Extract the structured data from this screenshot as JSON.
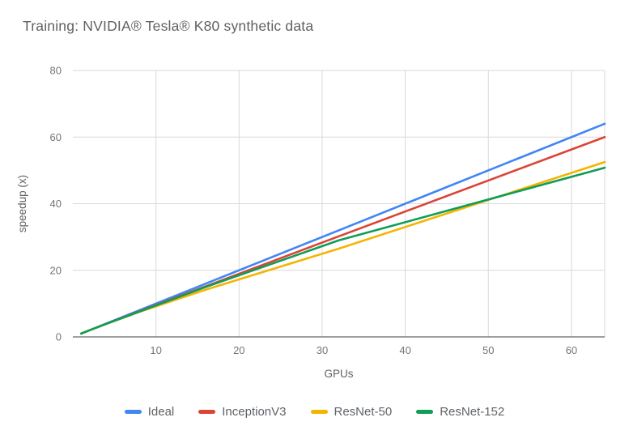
{
  "chart_data": {
    "type": "line",
    "title": "Training: NVIDIA® Tesla® K80 synthetic data",
    "xlabel": "GPUs",
    "ylabel": "speedup (x)",
    "xlim": [
      0,
      64
    ],
    "ylim": [
      0,
      80
    ],
    "x_ticks": [
      10,
      20,
      30,
      40,
      50,
      60
    ],
    "y_ticks": [
      0,
      20,
      40,
      60,
      80
    ],
    "grid": true,
    "legend_position": "bottom",
    "x": [
      1,
      2,
      4,
      8,
      16,
      32,
      64
    ],
    "series": [
      {
        "name": "Ideal",
        "color": "#4285f4",
        "values": [
          1,
          2,
          4,
          8,
          16,
          32,
          64
        ]
      },
      {
        "name": "InceptionV3",
        "color": "#db4437",
        "values": [
          1,
          2,
          3.9,
          7.7,
          15.2,
          30.2,
          60
        ]
      },
      {
        "name": "ResNet-50",
        "color": "#f4b400",
        "values": [
          1,
          2,
          3.85,
          7.5,
          14.2,
          26.5,
          52.5
        ]
      },
      {
        "name": "ResNet-152",
        "color": "#0f9d58",
        "values": [
          1,
          2,
          3.9,
          7.6,
          15,
          29,
          50.8
        ]
      }
    ],
    "colors": {
      "grid": "#d9d9d9",
      "axis": "#424242",
      "tick_label": "#757575",
      "title_text": "#616161"
    }
  }
}
